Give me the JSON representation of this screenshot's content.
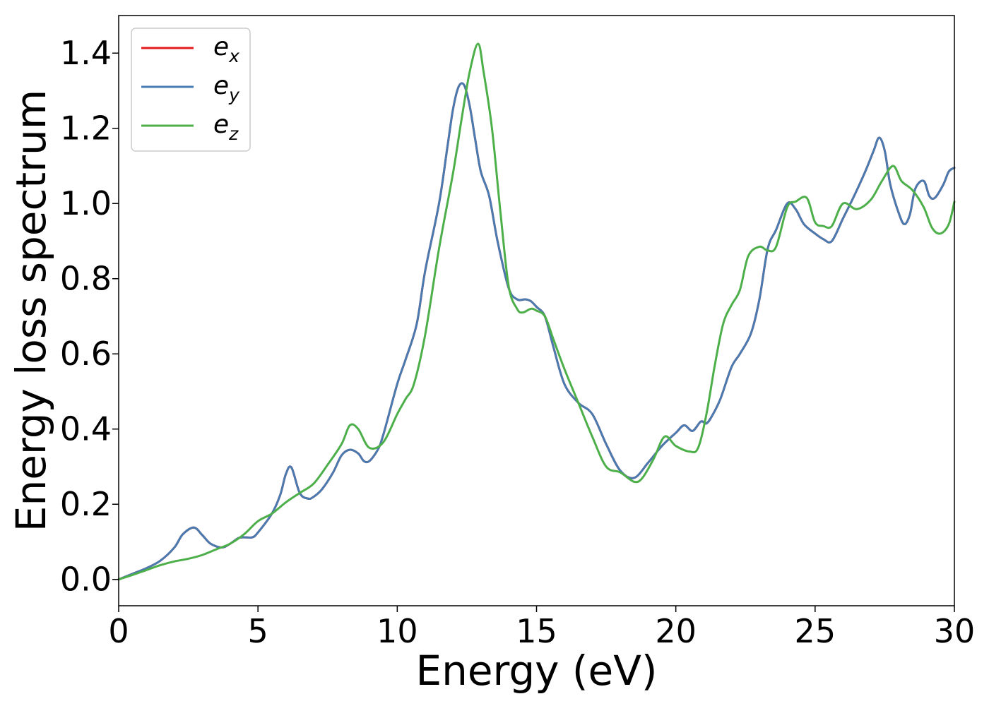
{
  "chart_data": {
    "type": "line",
    "xlabel": "Energy (eV)",
    "ylabel": "Energy loss spectrum",
    "xlim": [
      0,
      30
    ],
    "ylim": [
      -0.07,
      1.5
    ],
    "xticks": [
      0,
      5,
      10,
      15,
      20,
      25,
      30
    ],
    "xtick_labels": [
      "0",
      "5",
      "10",
      "15",
      "20",
      "25",
      "30"
    ],
    "yticks": [
      0.0,
      0.2,
      0.4,
      0.6,
      0.8,
      1.0,
      1.2,
      1.4
    ],
    "ytick_labels": [
      "0.0",
      "0.2",
      "0.4",
      "0.6",
      "0.8",
      "1.0",
      "1.2",
      "1.4"
    ],
    "grid": false,
    "legend_placement": "top-left",
    "series": [
      {
        "name": "e_x",
        "legend_base": "e",
        "legend_sub": "x",
        "color": "#e41a1c",
        "x": [
          0,
          0.5,
          1,
          1.5,
          2,
          2.3,
          2.7,
          3,
          3.3,
          3.7,
          4,
          4.3,
          4.5,
          4.8,
          5,
          5.5,
          5.8,
          6,
          6.2,
          6.5,
          6.8,
          7,
          7.3,
          7.7,
          8,
          8.3,
          8.6,
          8.8,
          9,
          9.3,
          9.5,
          10,
          10.3,
          10.7,
          11,
          11.5,
          11.8,
          12,
          12.2,
          12.4,
          12.6,
          12.8,
          13,
          13.3,
          13.6,
          14,
          14.3,
          14.6,
          14.8,
          15,
          15.3,
          15.6,
          16,
          16.5,
          17,
          17.5,
          18,
          18.5,
          19,
          19.5,
          20,
          20.3,
          20.6,
          20.9,
          21.1,
          21.3,
          21.6,
          22,
          22.3,
          22.7,
          23,
          23.3,
          23.6,
          24,
          24.3,
          24.6,
          25,
          25.3,
          25.6,
          26,
          26.4,
          26.8,
          27.1,
          27.3,
          27.5,
          27.7,
          28,
          28.2,
          28.4,
          28.6,
          28.9,
          29.1,
          29.3,
          29.6,
          29.8,
          30
        ],
        "y": [
          0.0,
          0.015,
          0.03,
          0.05,
          0.085,
          0.12,
          0.138,
          0.118,
          0.095,
          0.085,
          0.095,
          0.11,
          0.112,
          0.112,
          0.125,
          0.175,
          0.225,
          0.28,
          0.298,
          0.23,
          0.215,
          0.22,
          0.24,
          0.285,
          0.33,
          0.345,
          0.335,
          0.315,
          0.315,
          0.345,
          0.385,
          0.52,
          0.585,
          0.68,
          0.82,
          1.0,
          1.15,
          1.25,
          1.31,
          1.315,
          1.26,
          1.17,
          1.085,
          1.02,
          0.9,
          0.775,
          0.745,
          0.745,
          0.74,
          0.725,
          0.7,
          0.62,
          0.52,
          0.47,
          0.44,
          0.36,
          0.29,
          0.27,
          0.31,
          0.355,
          0.39,
          0.41,
          0.395,
          0.42,
          0.415,
          0.435,
          0.48,
          0.565,
          0.6,
          0.655,
          0.745,
          0.88,
          0.93,
          1.0,
          0.985,
          0.945,
          0.92,
          0.905,
          0.9,
          0.96,
          1.02,
          1.085,
          1.14,
          1.175,
          1.14,
          1.05,
          0.975,
          0.945,
          0.97,
          1.04,
          1.06,
          1.02,
          1.015,
          1.05,
          1.085,
          1.095
        ]
      },
      {
        "name": "e_y",
        "legend_base": "e",
        "legend_sub": "y",
        "color": "#4a7bb0",
        "x": [
          0,
          0.5,
          1,
          1.5,
          2,
          2.3,
          2.7,
          3,
          3.3,
          3.7,
          4,
          4.3,
          4.5,
          4.8,
          5,
          5.5,
          5.8,
          6,
          6.2,
          6.5,
          6.8,
          7,
          7.3,
          7.7,
          8,
          8.3,
          8.6,
          8.8,
          9,
          9.3,
          9.5,
          10,
          10.3,
          10.7,
          11,
          11.5,
          11.8,
          12,
          12.2,
          12.4,
          12.6,
          12.8,
          13,
          13.3,
          13.6,
          14,
          14.3,
          14.6,
          14.8,
          15,
          15.3,
          15.6,
          16,
          16.5,
          17,
          17.5,
          18,
          18.5,
          19,
          19.5,
          20,
          20.3,
          20.6,
          20.9,
          21.1,
          21.3,
          21.6,
          22,
          22.3,
          22.7,
          23,
          23.3,
          23.6,
          24,
          24.3,
          24.6,
          25,
          25.3,
          25.6,
          26,
          26.4,
          26.8,
          27.1,
          27.3,
          27.5,
          27.7,
          28,
          28.2,
          28.4,
          28.6,
          28.9,
          29.1,
          29.3,
          29.6,
          29.8,
          30
        ],
        "y": [
          0.0,
          0.015,
          0.03,
          0.05,
          0.085,
          0.12,
          0.138,
          0.118,
          0.095,
          0.085,
          0.095,
          0.11,
          0.112,
          0.112,
          0.125,
          0.175,
          0.225,
          0.28,
          0.298,
          0.23,
          0.215,
          0.22,
          0.24,
          0.285,
          0.33,
          0.345,
          0.335,
          0.315,
          0.315,
          0.345,
          0.385,
          0.52,
          0.585,
          0.68,
          0.82,
          1.0,
          1.15,
          1.25,
          1.31,
          1.315,
          1.26,
          1.17,
          1.085,
          1.02,
          0.9,
          0.775,
          0.745,
          0.745,
          0.74,
          0.725,
          0.7,
          0.62,
          0.52,
          0.47,
          0.44,
          0.36,
          0.29,
          0.27,
          0.31,
          0.355,
          0.39,
          0.41,
          0.395,
          0.42,
          0.415,
          0.435,
          0.48,
          0.565,
          0.6,
          0.655,
          0.745,
          0.88,
          0.93,
          1.0,
          0.985,
          0.945,
          0.92,
          0.905,
          0.9,
          0.96,
          1.02,
          1.085,
          1.14,
          1.175,
          1.14,
          1.05,
          0.975,
          0.945,
          0.97,
          1.04,
          1.06,
          1.02,
          1.015,
          1.05,
          1.085,
          1.095
        ]
      },
      {
        "name": "e_z",
        "legend_base": "e",
        "legend_sub": "z",
        "color": "#4daf4a",
        "x": [
          0,
          0.5,
          1,
          1.5,
          2,
          2.5,
          3,
          3.5,
          4,
          4.5,
          5,
          5.5,
          6,
          6.5,
          7,
          7.5,
          8,
          8.3,
          8.6,
          9,
          9.5,
          10,
          10.3,
          10.6,
          11,
          11.5,
          12,
          12.3,
          12.6,
          12.9,
          13.1,
          13.4,
          13.7,
          14,
          14.3,
          14.5,
          14.8,
          15,
          15.3,
          15.6,
          16,
          16.5,
          17,
          17.5,
          18,
          18.5,
          18.8,
          19.2,
          19.6,
          20,
          20.5,
          20.8,
          21.1,
          21.4,
          21.7,
          22,
          22.3,
          22.6,
          23,
          23.3,
          23.6,
          24,
          24.3,
          24.7,
          25,
          25.3,
          25.6,
          26,
          26.5,
          27,
          27.4,
          27.8,
          28.1,
          28.5,
          28.9,
          29.2,
          29.5,
          29.8,
          30
        ],
        "y": [
          0.0,
          0.012,
          0.025,
          0.038,
          0.048,
          0.055,
          0.065,
          0.08,
          0.095,
          0.12,
          0.155,
          0.175,
          0.205,
          0.23,
          0.255,
          0.305,
          0.36,
          0.41,
          0.4,
          0.35,
          0.365,
          0.44,
          0.48,
          0.52,
          0.65,
          0.88,
          1.08,
          1.22,
          1.35,
          1.425,
          1.35,
          1.2,
          0.98,
          0.78,
          0.72,
          0.71,
          0.72,
          0.715,
          0.7,
          0.64,
          0.56,
          0.47,
          0.38,
          0.3,
          0.285,
          0.26,
          0.27,
          0.32,
          0.38,
          0.355,
          0.34,
          0.35,
          0.44,
          0.57,
          0.68,
          0.73,
          0.77,
          0.86,
          0.885,
          0.875,
          0.885,
          0.99,
          1.005,
          1.015,
          0.95,
          0.94,
          0.94,
          1.0,
          0.985,
          1.01,
          1.06,
          1.1,
          1.06,
          1.035,
          0.99,
          0.935,
          0.92,
          0.945,
          1.005
        ]
      }
    ]
  }
}
